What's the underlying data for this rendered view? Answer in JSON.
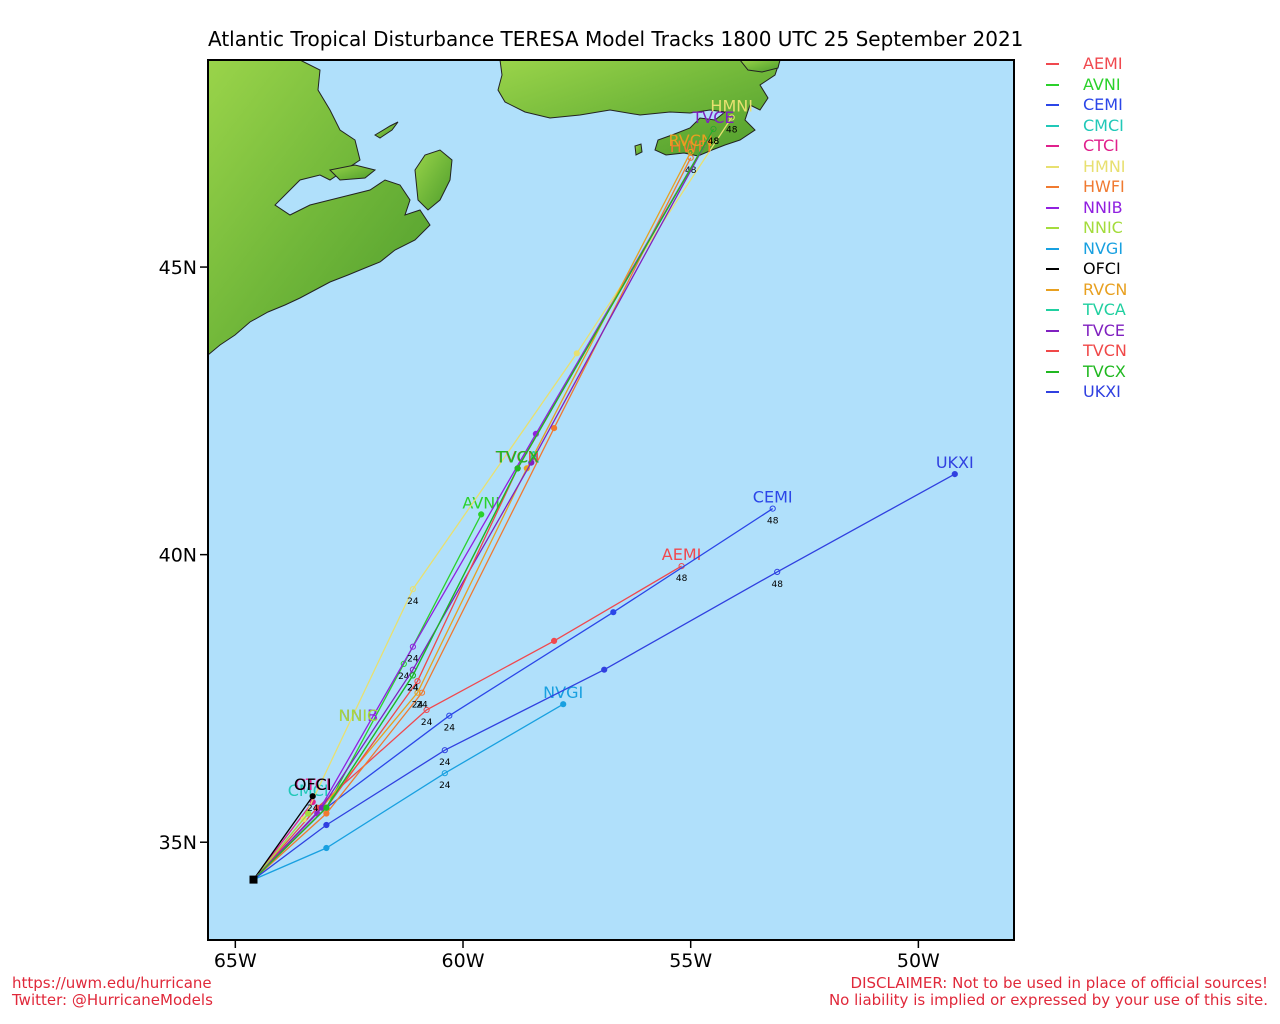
{
  "title": "Atlantic Tropical Disturbance TERESA Model Tracks  1800 UTC 25 September 2021",
  "footer": {
    "url": "https://uwm.edu/hurricane",
    "twitter": "Twitter: @HurricaneModels",
    "disclaimer1": "DISCLAIMER: Not to be used in place of official sources!",
    "disclaimer2": "No liability is implied or expressed by your use of this site."
  },
  "colors": {
    "ocean": "#b0e0fb",
    "land": "#7cc23c",
    "land_edge": "#222222",
    "footer_text": "#e0283a"
  },
  "chart_data": {
    "type": "line",
    "title": "Atlantic Tropical Disturbance TERESA Model Tracks  1800 UTC 25 September 2021",
    "x_axis": {
      "range_lon": [
        -65.6,
        -47.9
      ],
      "ticks": [
        -65,
        -60,
        -55,
        -50
      ],
      "tick_labels": [
        "65W",
        "60W",
        "55W",
        "50W"
      ]
    },
    "y_axis": {
      "range_lat": [
        33.3,
        48.6
      ],
      "ticks": [
        35,
        40,
        45
      ],
      "tick_labels": [
        "35N",
        "40N",
        "45N"
      ]
    },
    "start": {
      "lon": -64.6,
      "lat": 34.35
    },
    "legend_position": "right",
    "series": [
      {
        "name": "AEMI",
        "color": "#f0484e",
        "points": [
          [
            -64.6,
            34.35
          ],
          [
            -63.2,
            35.6
          ],
          [
            -60.8,
            37.3
          ],
          [
            -58,
            38.5
          ],
          [
            -55.2,
            39.8
          ]
        ],
        "hour_labels": [
          [
            -60.8,
            37.3,
            "24"
          ],
          [
            -55.2,
            39.8,
            "48"
          ]
        ],
        "label": "AEMI",
        "label_at": [
          -55.2,
          39.8
        ]
      },
      {
        "name": "AVNI",
        "color": "#2bd12b",
        "points": [
          [
            -64.6,
            34.35
          ],
          [
            -63,
            35.6
          ],
          [
            -61.3,
            38.1
          ],
          [
            -59.6,
            40.7
          ]
        ],
        "hour_labels": [
          [
            -61.3,
            38.1,
            "24"
          ]
        ],
        "label": "AVNI",
        "label_at": [
          -59.6,
          40.7
        ]
      },
      {
        "name": "CEMI",
        "color": "#2b46e8",
        "points": [
          [
            -64.6,
            34.35
          ],
          [
            -63,
            35.6
          ],
          [
            -60.3,
            37.2
          ],
          [
            -56.7,
            39
          ],
          [
            -53.2,
            40.8
          ]
        ],
        "hour_labels": [
          [
            -60.3,
            37.2,
            "24"
          ],
          [
            -53.2,
            40.8,
            "48"
          ]
        ],
        "label": "CEMI",
        "label_at": [
          -53.2,
          40.8
        ]
      },
      {
        "name": "CMCI",
        "color": "#20c8b8",
        "points": [
          [
            -64.6,
            34.35
          ],
          [
            -63.4,
            35.5
          ]
        ],
        "hour_labels": [],
        "label": "CMCI",
        "label_at": [
          -63.4,
          35.7
        ]
      },
      {
        "name": "CTCI",
        "color": "#e0208c",
        "points": [
          [
            -64.6,
            34.35
          ],
          [
            -63.3,
            35.7
          ]
        ],
        "hour_labels": [],
        "label": "CTCI",
        "label_at": [
          -63.3,
          35.8
        ]
      },
      {
        "name": "HMNI",
        "color": "#e8e070",
        "points": [
          [
            -64.6,
            34.35
          ],
          [
            -63.5,
            35.4
          ],
          [
            -61.1,
            39.4
          ],
          [
            -57.5,
            43.5
          ],
          [
            -54.1,
            47.6
          ]
        ],
        "hour_labels": [
          [
            -61.1,
            39.4,
            "24"
          ],
          [
            -54.1,
            47.6,
            "48"
          ]
        ],
        "label": "HMNI",
        "label_at": [
          -54.1,
          47.6
        ]
      },
      {
        "name": "HWFI",
        "color": "#f07a30",
        "points": [
          [
            -64.6,
            34.35
          ],
          [
            -63,
            35.5
          ],
          [
            -60.9,
            37.6
          ],
          [
            -58,
            42.2
          ],
          [
            -55,
            46.9
          ]
        ],
        "hour_labels": [
          [
            -60.9,
            37.6,
            "24"
          ],
          [
            -55,
            46.9,
            "48"
          ]
        ],
        "label": "HWFI",
        "label_at": [
          -55,
          46.9
        ]
      },
      {
        "name": "NNIB",
        "color": "#9020e0",
        "points": [
          [
            -64.6,
            34.35
          ],
          [
            -63.2,
            35.5
          ],
          [
            -61.1,
            38.4
          ],
          [
            -58.4,
            42.1
          ],
          [
            -54.5,
            47.4
          ]
        ],
        "hour_labels": [
          [
            -61.1,
            38.4,
            "24"
          ],
          [
            -54.5,
            47.4,
            "48"
          ]
        ],
        "label": "NNIB",
        "label_at": [
          -62.3,
          37
        ]
      },
      {
        "name": "NNIC",
        "color": "#a4dc3c",
        "points": [
          [
            -64.6,
            34.35
          ],
          [
            -63.4,
            35.5
          ]
        ],
        "hour_labels": [],
        "label": "NNIC",
        "label_at": [
          -62.3,
          37
        ]
      },
      {
        "name": "NVGI",
        "color": "#18a0e0",
        "points": [
          [
            -64.6,
            34.35
          ],
          [
            -63,
            34.9
          ],
          [
            -60.4,
            36.2
          ],
          [
            -57.8,
            37.4
          ]
        ],
        "hour_labels": [
          [
            -60.4,
            36.2,
            "24"
          ]
        ],
        "label": "NVGI",
        "label_at": [
          -57.8,
          37.4
        ]
      },
      {
        "name": "OFCI",
        "color": "#000000",
        "points": [
          [
            -64.6,
            34.35
          ],
          [
            -63.3,
            35.8
          ]
        ],
        "hour_labels": [
          [
            -63.3,
            35.8,
            "24"
          ]
        ],
        "label": "OFCI",
        "label_at": [
          -63.3,
          35.8
        ]
      },
      {
        "name": "RVCN",
        "color": "#e8a020",
        "points": [
          [
            -64.6,
            34.35
          ],
          [
            -63.1,
            35.6
          ],
          [
            -61,
            37.6
          ],
          [
            -58.6,
            41.5
          ],
          [
            -55,
            47
          ]
        ],
        "hour_labels": [
          [
            -61,
            37.6,
            "24"
          ]
        ],
        "label": "RVCN",
        "label_at": [
          -55,
          47
        ]
      },
      {
        "name": "TVCA",
        "color": "#20d0a0",
        "points": [
          [
            -64.6,
            34.35
          ],
          [
            -63,
            35.6
          ],
          [
            -61.1,
            37.9
          ],
          [
            -58.8,
            41.5
          ],
          [
            -54.5,
            47.4
          ]
        ],
        "hour_labels": [
          [
            -61.1,
            37.9,
            "24"
          ]
        ],
        "label": "TVCA",
        "label_at": [
          -58.8,
          41.5
        ]
      },
      {
        "name": "TVCE",
        "color": "#8020c0",
        "points": [
          [
            -64.6,
            34.35
          ],
          [
            -63.1,
            35.6
          ],
          [
            -61.1,
            38
          ],
          [
            -58.5,
            41.6
          ],
          [
            -54.5,
            47.4
          ]
        ],
        "hour_labels": [
          [
            -54.5,
            47.4,
            "48"
          ]
        ],
        "label": "TVCE",
        "label_at": [
          -54.5,
          47.4
        ]
      },
      {
        "name": "TVCN",
        "color": "#f04848",
        "points": [
          [
            -64.6,
            34.35
          ],
          [
            -63,
            35.6
          ],
          [
            -61,
            37.8
          ],
          [
            -58.8,
            41.5
          ],
          [
            -54.5,
            47.4
          ]
        ],
        "hour_labels": [],
        "label": "TVCN",
        "label_at": [
          -58.8,
          41.5
        ]
      },
      {
        "name": "TVCX",
        "color": "#20b820",
        "points": [
          [
            -64.6,
            34.35
          ],
          [
            -63,
            35.6
          ],
          [
            -61.1,
            37.9
          ],
          [
            -58.8,
            41.5
          ],
          [
            -54.5,
            47.4
          ]
        ],
        "hour_labels": [
          [
            -61.1,
            37.9,
            "24"
          ]
        ],
        "label": "TVCX",
        "label_at": [
          -58.8,
          41.5
        ]
      },
      {
        "name": "UKXI",
        "color": "#3040e0",
        "points": [
          [
            -64.6,
            34.35
          ],
          [
            -63,
            35.3
          ],
          [
            -60.4,
            36.6
          ],
          [
            -56.9,
            38
          ],
          [
            -53.1,
            39.7
          ],
          [
            -49.2,
            41.4
          ]
        ],
        "hour_labels": [
          [
            -60.4,
            36.6,
            "24"
          ],
          [
            -53.1,
            39.7,
            "48"
          ]
        ],
        "label": "UKXI",
        "label_at": [
          -49.2,
          41.4
        ]
      }
    ]
  }
}
